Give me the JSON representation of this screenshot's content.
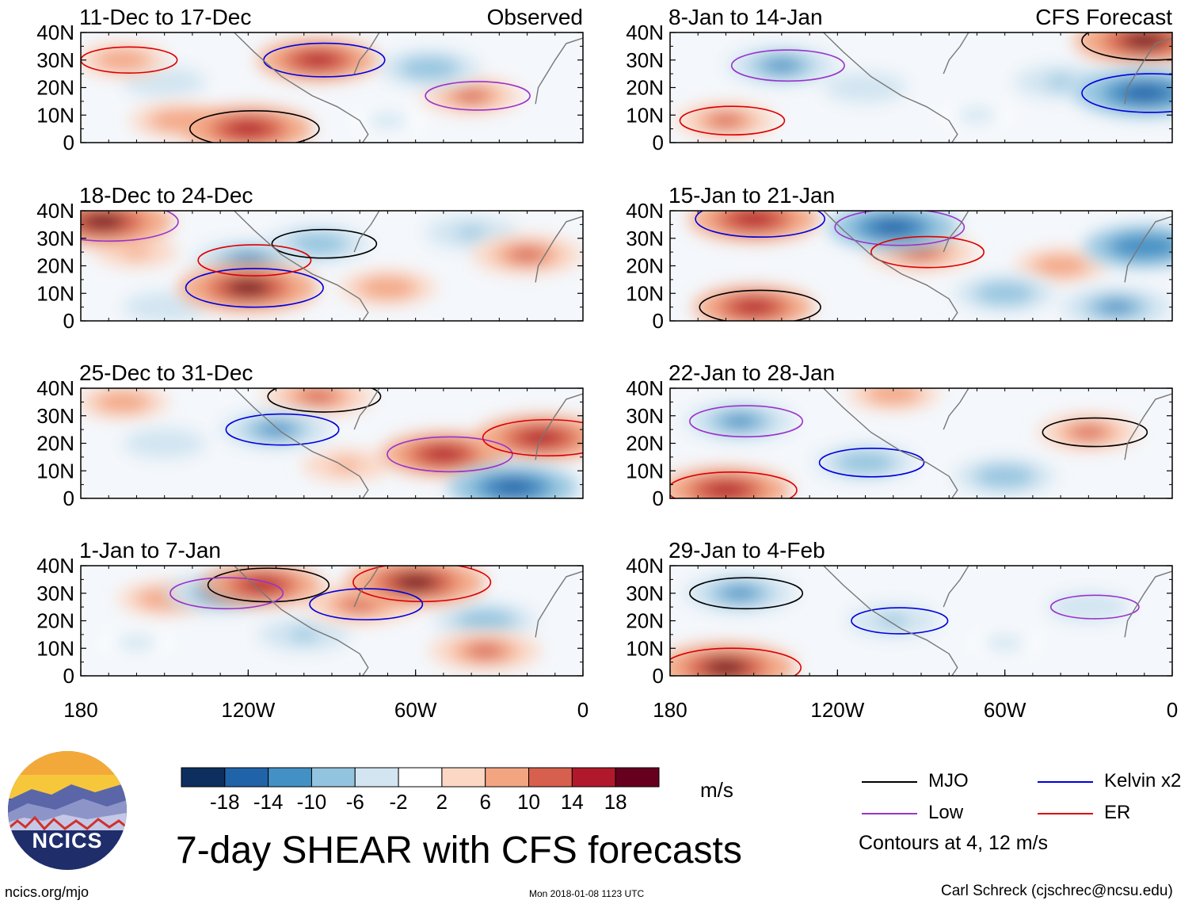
{
  "chart_data": {
    "type": "heatmap",
    "title": "7-day SHEAR with CFS forecasts",
    "variable": "7-day wind shear anomaly",
    "units": "m/s",
    "x_axis": {
      "range": [
        -180,
        0
      ],
      "tick_values": [
        -180,
        -120,
        -60,
        0
      ],
      "tick_labels": [
        "180",
        "120W",
        "60W",
        "0"
      ]
    },
    "y_axis": {
      "range": [
        0,
        40
      ],
      "tick_values": [
        0,
        10,
        20,
        30,
        40
      ],
      "tick_labels": [
        "0",
        "10N",
        "20N",
        "30N",
        "40N"
      ]
    },
    "colorbar": {
      "levels": [
        -18,
        -14,
        -10,
        -6,
        -2,
        2,
        6,
        10,
        14,
        18
      ],
      "labels": [
        "-18",
        "-14",
        "-10",
        "-6",
        "-2",
        "2",
        "6",
        "10",
        "14",
        "18"
      ],
      "colors": [
        "#0d2f5f",
        "#2163a8",
        "#4390c4",
        "#93c4df",
        "#d2e5f1",
        "#ffffff",
        "#fbd7c4",
        "#f3a582",
        "#d6604d",
        "#b2182b",
        "#67001f"
      ]
    },
    "contours": {
      "note": "Contours at 4, 12 m/s",
      "legend": [
        {
          "name": "MJO",
          "color": "#000000"
        },
        {
          "name": "Kelvin x2",
          "color": "#0000dd"
        },
        {
          "name": "Low",
          "color": "#9933cc"
        },
        {
          "name": "ER",
          "color": "#dd0000"
        }
      ]
    },
    "panels": [
      {
        "column": "observed",
        "row": 0,
        "period": "11-Dec to 17-Dec",
        "header": "Observed",
        "fields": [
          {
            "lon": -120,
            "lat": 5,
            "value": 16
          },
          {
            "lon": -95,
            "lat": 30,
            "value": 14
          },
          {
            "lon": -40,
            "lat": 17,
            "value": 10
          },
          {
            "lon": -165,
            "lat": 30,
            "value": 8
          },
          {
            "lon": -145,
            "lat": 8,
            "value": 9
          },
          {
            "lon": -55,
            "lat": 27,
            "value": -10
          },
          {
            "lon": -150,
            "lat": 22,
            "value": -6
          },
          {
            "lon": -70,
            "lat": 8,
            "value": -4
          }
        ]
      },
      {
        "column": "observed",
        "row": 1,
        "period": "18-Dec to 24-Dec",
        "header": "",
        "fields": [
          {
            "lon": -120,
            "lat": 12,
            "value": 18
          },
          {
            "lon": -172,
            "lat": 36,
            "value": 18
          },
          {
            "lon": -120,
            "lat": 22,
            "value": -12
          },
          {
            "lon": -95,
            "lat": 28,
            "value": -10
          },
          {
            "lon": -20,
            "lat": 24,
            "value": 12
          },
          {
            "lon": -70,
            "lat": 12,
            "value": 9
          },
          {
            "lon": -40,
            "lat": 32,
            "value": -8
          },
          {
            "lon": -150,
            "lat": 5,
            "value": -6
          },
          {
            "lon": -160,
            "lat": 25,
            "value": 6
          }
        ]
      },
      {
        "column": "observed",
        "row": 2,
        "period": "25-Dec to 31-Dec",
        "header": "",
        "fields": [
          {
            "lon": -50,
            "lat": 16,
            "value": 15
          },
          {
            "lon": -15,
            "lat": 22,
            "value": 16
          },
          {
            "lon": -95,
            "lat": 37,
            "value": 12
          },
          {
            "lon": -110,
            "lat": 25,
            "value": -12
          },
          {
            "lon": -25,
            "lat": 4,
            "value": -16
          },
          {
            "lon": -165,
            "lat": 35,
            "value": 8
          },
          {
            "lon": -150,
            "lat": 20,
            "value": -6
          },
          {
            "lon": -85,
            "lat": 12,
            "value": 7
          }
        ]
      },
      {
        "column": "observed",
        "row": 3,
        "period": "1-Jan to 7-Jan",
        "header": "",
        "fields": [
          {
            "lon": -60,
            "lat": 34,
            "value": 18
          },
          {
            "lon": -115,
            "lat": 33,
            "value": 14
          },
          {
            "lon": -80,
            "lat": 26,
            "value": 12
          },
          {
            "lon": -130,
            "lat": 30,
            "value": -12
          },
          {
            "lon": -35,
            "lat": 20,
            "value": -10
          },
          {
            "lon": -35,
            "lat": 9,
            "value": 12
          },
          {
            "lon": -100,
            "lat": 15,
            "value": -8
          },
          {
            "lon": -150,
            "lat": 28,
            "value": 8
          },
          {
            "lon": -160,
            "lat": 12,
            "value": -4
          }
        ]
      },
      {
        "column": "forecast",
        "row": 0,
        "period": "8-Jan to 14-Jan",
        "header": "CFS Forecast",
        "fields": [
          {
            "lon": -10,
            "lat": 37,
            "value": 18
          },
          {
            "lon": -10,
            "lat": 18,
            "value": -18
          },
          {
            "lon": -140,
            "lat": 28,
            "value": -12
          },
          {
            "lon": -160,
            "lat": 8,
            "value": 10
          },
          {
            "lon": -110,
            "lat": 20,
            "value": -6
          },
          {
            "lon": -70,
            "lat": 10,
            "value": -4
          },
          {
            "lon": -40,
            "lat": 22,
            "value": -8
          }
        ]
      },
      {
        "column": "forecast",
        "row": 1,
        "period": "15-Jan to 21-Jan",
        "header": "",
        "fields": [
          {
            "lon": -150,
            "lat": 37,
            "value": 16
          },
          {
            "lon": -100,
            "lat": 34,
            "value": -16
          },
          {
            "lon": -90,
            "lat": 25,
            "value": 12
          },
          {
            "lon": -150,
            "lat": 5,
            "value": 14
          },
          {
            "lon": -10,
            "lat": 27,
            "value": -14
          },
          {
            "lon": -60,
            "lat": 10,
            "value": -10
          },
          {
            "lon": -40,
            "lat": 20,
            "value": 8
          },
          {
            "lon": -20,
            "lat": 5,
            "value": -12
          }
        ]
      },
      {
        "column": "forecast",
        "row": 2,
        "period": "22-Jan to 28-Jan",
        "header": "",
        "fields": [
          {
            "lon": -155,
            "lat": 28,
            "value": -12
          },
          {
            "lon": -160,
            "lat": 3,
            "value": 16
          },
          {
            "lon": -30,
            "lat": 24,
            "value": 10
          },
          {
            "lon": -110,
            "lat": 13,
            "value": -10
          },
          {
            "lon": -60,
            "lat": 8,
            "value": -10
          },
          {
            "lon": -100,
            "lat": 38,
            "value": 8
          }
        ]
      },
      {
        "column": "forecast",
        "row": 3,
        "period": "29-Jan to 4-Feb",
        "header": "",
        "fields": [
          {
            "lon": -160,
            "lat": 3,
            "value": 18
          },
          {
            "lon": -155,
            "lat": 30,
            "value": -12
          },
          {
            "lon": -100,
            "lat": 20,
            "value": -8
          },
          {
            "lon": -30,
            "lat": 25,
            "value": -6
          },
          {
            "lon": -60,
            "lat": 12,
            "value": -4
          }
        ]
      }
    ]
  },
  "footer": {
    "source": "ncics.org/mjo",
    "timestamp": "Mon 2018-01-08 1123 UTC",
    "author": "Carl Schreck (cjschrec@ncsu.edu)"
  },
  "logo": {
    "text": "NCICS"
  }
}
